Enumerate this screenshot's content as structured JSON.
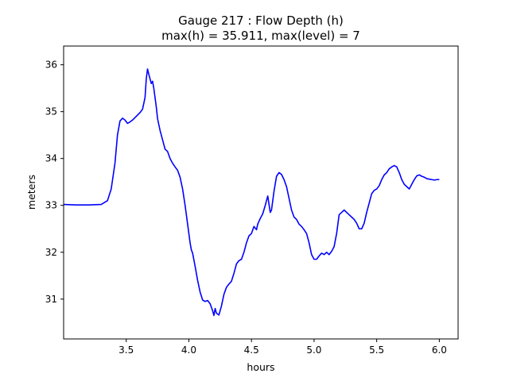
{
  "chart_data": {
    "type": "line",
    "title_line1": "Gauge 217 : Flow Depth (h)",
    "title_line2": "max(h) =  35.911,    max(level) = 7",
    "xlabel": "hours",
    "ylabel": "meters",
    "xlim": [
      3.0,
      6.15
    ],
    "ylim": [
      30.15,
      36.4
    ],
    "xticks": [
      3.5,
      4.0,
      4.5,
      5.0,
      5.5,
      6.0
    ],
    "xtick_labels": [
      "3.5",
      "4.0",
      "4.5",
      "5.0",
      "5.5",
      "6.0"
    ],
    "yticks": [
      31,
      32,
      33,
      34,
      35,
      36
    ],
    "ytick_labels": [
      "31",
      "32",
      "33",
      "34",
      "35",
      "36"
    ],
    "grid": false,
    "series": [
      {
        "color": "#0000ff",
        "x": [
          3.0,
          3.1,
          3.2,
          3.3,
          3.35,
          3.38,
          3.41,
          3.43,
          3.45,
          3.47,
          3.49,
          3.51,
          3.53,
          3.55,
          3.58,
          3.61,
          3.63,
          3.65,
          3.66,
          3.67,
          3.68,
          3.69,
          3.7,
          3.71,
          3.72,
          3.73,
          3.74,
          3.75,
          3.77,
          3.79,
          3.81,
          3.83,
          3.85,
          3.87,
          3.89,
          3.91,
          3.93,
          3.95,
          3.97,
          3.99,
          4.01,
          4.02,
          4.03,
          4.05,
          4.07,
          4.09,
          4.11,
          4.13,
          4.15,
          4.17,
          4.19,
          4.2,
          4.21,
          4.22,
          4.24,
          4.26,
          4.28,
          4.3,
          4.32,
          4.34,
          4.36,
          4.38,
          4.4,
          4.42,
          4.44,
          4.46,
          4.48,
          4.5,
          4.52,
          4.54,
          4.55,
          4.57,
          4.59,
          4.61,
          4.63,
          4.65,
          4.66,
          4.68,
          4.7,
          4.72,
          4.74,
          4.76,
          4.78,
          4.8,
          4.82,
          4.84,
          4.86,
          4.88,
          4.9,
          4.92,
          4.94,
          4.96,
          4.98,
          5.0,
          5.02,
          5.04,
          5.06,
          5.08,
          5.1,
          5.12,
          5.14,
          5.16,
          5.18,
          5.2,
          5.22,
          5.24,
          5.26,
          5.28,
          5.3,
          5.32,
          5.34,
          5.36,
          5.38,
          5.4,
          5.42,
          5.44,
          5.46,
          5.48,
          5.5,
          5.52,
          5.54,
          5.56,
          5.58,
          5.6,
          5.62,
          5.64,
          5.66,
          5.68,
          5.7,
          5.72,
          5.74,
          5.76,
          5.78,
          5.8,
          5.82,
          5.84,
          5.86,
          5.88,
          5.9,
          5.92,
          5.94,
          5.96,
          5.98,
          6.0
        ],
        "y": [
          33.02,
          33.01,
          33.01,
          33.02,
          33.1,
          33.35,
          33.9,
          34.5,
          34.8,
          34.86,
          34.82,
          34.75,
          34.78,
          34.82,
          34.9,
          34.98,
          35.05,
          35.3,
          35.7,
          35.91,
          35.8,
          35.7,
          35.6,
          35.65,
          35.5,
          35.3,
          35.1,
          34.85,
          34.6,
          34.4,
          34.2,
          34.15,
          34.0,
          33.9,
          33.82,
          33.75,
          33.6,
          33.35,
          33.0,
          32.6,
          32.2,
          32.05,
          31.98,
          31.7,
          31.4,
          31.15,
          30.98,
          30.95,
          30.97,
          30.9,
          30.75,
          30.65,
          30.8,
          30.7,
          30.66,
          30.85,
          31.1,
          31.25,
          31.32,
          31.38,
          31.55,
          31.75,
          31.82,
          31.85,
          32.0,
          32.2,
          32.35,
          32.4,
          32.55,
          32.48,
          32.6,
          32.72,
          32.82,
          33.0,
          33.2,
          32.85,
          32.9,
          33.3,
          33.62,
          33.7,
          33.66,
          33.55,
          33.4,
          33.15,
          32.9,
          32.75,
          32.7,
          32.6,
          32.55,
          32.48,
          32.4,
          32.2,
          31.95,
          31.85,
          31.85,
          31.92,
          31.98,
          31.95,
          32.0,
          31.95,
          32.02,
          32.12,
          32.4,
          32.8,
          32.85,
          32.9,
          32.85,
          32.8,
          32.75,
          32.7,
          32.62,
          32.5,
          32.5,
          32.62,
          32.85,
          33.05,
          33.25,
          33.32,
          33.35,
          33.42,
          33.55,
          33.65,
          33.7,
          33.78,
          33.82,
          33.85,
          33.82,
          33.7,
          33.55,
          33.45,
          33.4,
          33.35,
          33.45,
          33.55,
          33.63,
          33.65,
          33.62,
          33.6,
          33.57,
          33.56,
          33.55,
          33.54,
          33.55,
          33.55
        ]
      }
    ]
  }
}
